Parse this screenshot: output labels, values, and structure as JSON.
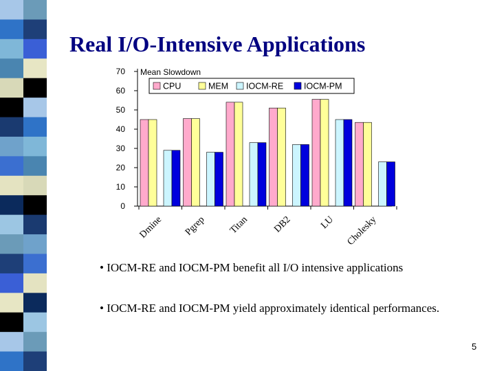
{
  "slide": {
    "title": "Real I/O-Intensive Applications",
    "bullets": [
      "• IOCM-RE and IOCM-PM benefit all I/O intensive applications",
      "• IOCM-RE and IOCM-PM yield approximately identical performances."
    ],
    "page_number": "5"
  },
  "decor": {
    "stripe_colors": [
      "#6b9bb8",
      "#1e3f78",
      "#3a5fd6",
      "#e7e6c4",
      "#000000",
      "#a7c7e8",
      "#2f73c7",
      "#7fb7d8",
      "#4a85b0",
      "#d8d9b8",
      "#000000",
      "#1a3a70",
      "#6fa2cb",
      "#3b6fd0",
      "#e4e3c1",
      "#0b2a5c",
      "#9cc6e3"
    ]
  },
  "chart_data": {
    "type": "bar",
    "title": "",
    "ylabel": "Mean Slowdown",
    "xlabel": "",
    "ylim": [
      0,
      70
    ],
    "yticks": [
      0,
      10,
      20,
      30,
      40,
      50,
      60,
      70
    ],
    "grid": false,
    "legend_position": "top",
    "categories": [
      "Dmine",
      "Pgrep",
      "Titan",
      "DB2",
      "LU",
      "Cholesky"
    ],
    "series": [
      {
        "name": "CPU",
        "color": "#ffaacc",
        "values": [
          45,
          45.5,
          54,
          51,
          55.5,
          43.5
        ]
      },
      {
        "name": "MEM",
        "color": "#ffff99",
        "values": [
          45,
          45.5,
          54,
          51,
          55.5,
          43.5
        ]
      },
      {
        "name": "IOCM-RE",
        "color": "#ccf5ff",
        "values": [
          29,
          28,
          33,
          32,
          45,
          23
        ]
      },
      {
        "name": "IOCM-PM",
        "color": "#0000dd",
        "values": [
          29,
          28,
          33,
          32,
          45,
          23
        ]
      }
    ]
  }
}
